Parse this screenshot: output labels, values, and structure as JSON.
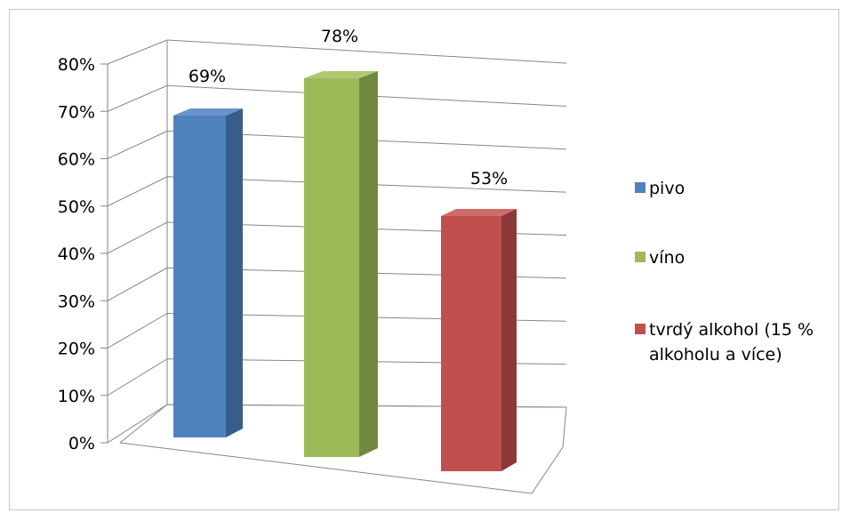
{
  "chart_data": {
    "type": "bar",
    "title": "",
    "xlabel": "",
    "ylabel": "",
    "categories": [
      "pivo",
      "víno",
      "tvrdý alkohol (15 % alkoholu a více)"
    ],
    "values": [
      0.69,
      0.78,
      0.53
    ],
    "data_labels": [
      "69%",
      "78%",
      "53%"
    ],
    "ylim": [
      0,
      0.8
    ],
    "y_ticks": [
      {
        "value": 0.0,
        "label": "0%"
      },
      {
        "value": 0.1,
        "label": "10%"
      },
      {
        "value": 0.2,
        "label": "20%"
      },
      {
        "value": 0.3,
        "label": "30%"
      },
      {
        "value": 0.4,
        "label": "40%"
      },
      {
        "value": 0.5,
        "label": "50%"
      },
      {
        "value": 0.6,
        "label": "60%"
      },
      {
        "value": 0.7,
        "label": "70%"
      },
      {
        "value": 0.8,
        "label": "80%"
      }
    ],
    "style": "3d-column",
    "grid": true,
    "legend_position": "right",
    "legend": [
      {
        "lines": [
          "pivo"
        ],
        "color": "#4f81bd"
      },
      {
        "lines": [
          "víno"
        ],
        "color": "#9bbb59"
      },
      {
        "lines": [
          "tvrdý alkohol (15 %",
          "alkoholu a více)"
        ],
        "color": "#c0504d"
      }
    ],
    "colors": {
      "series": [
        "#4f81bd",
        "#9bbb59",
        "#c0504d"
      ],
      "series_side": [
        "#385d8a",
        "#71893f",
        "#8c3836"
      ],
      "series_top": [
        "#6a94c8",
        "#aec972",
        "#cd6c69"
      ],
      "grid": "#868686"
    }
  }
}
